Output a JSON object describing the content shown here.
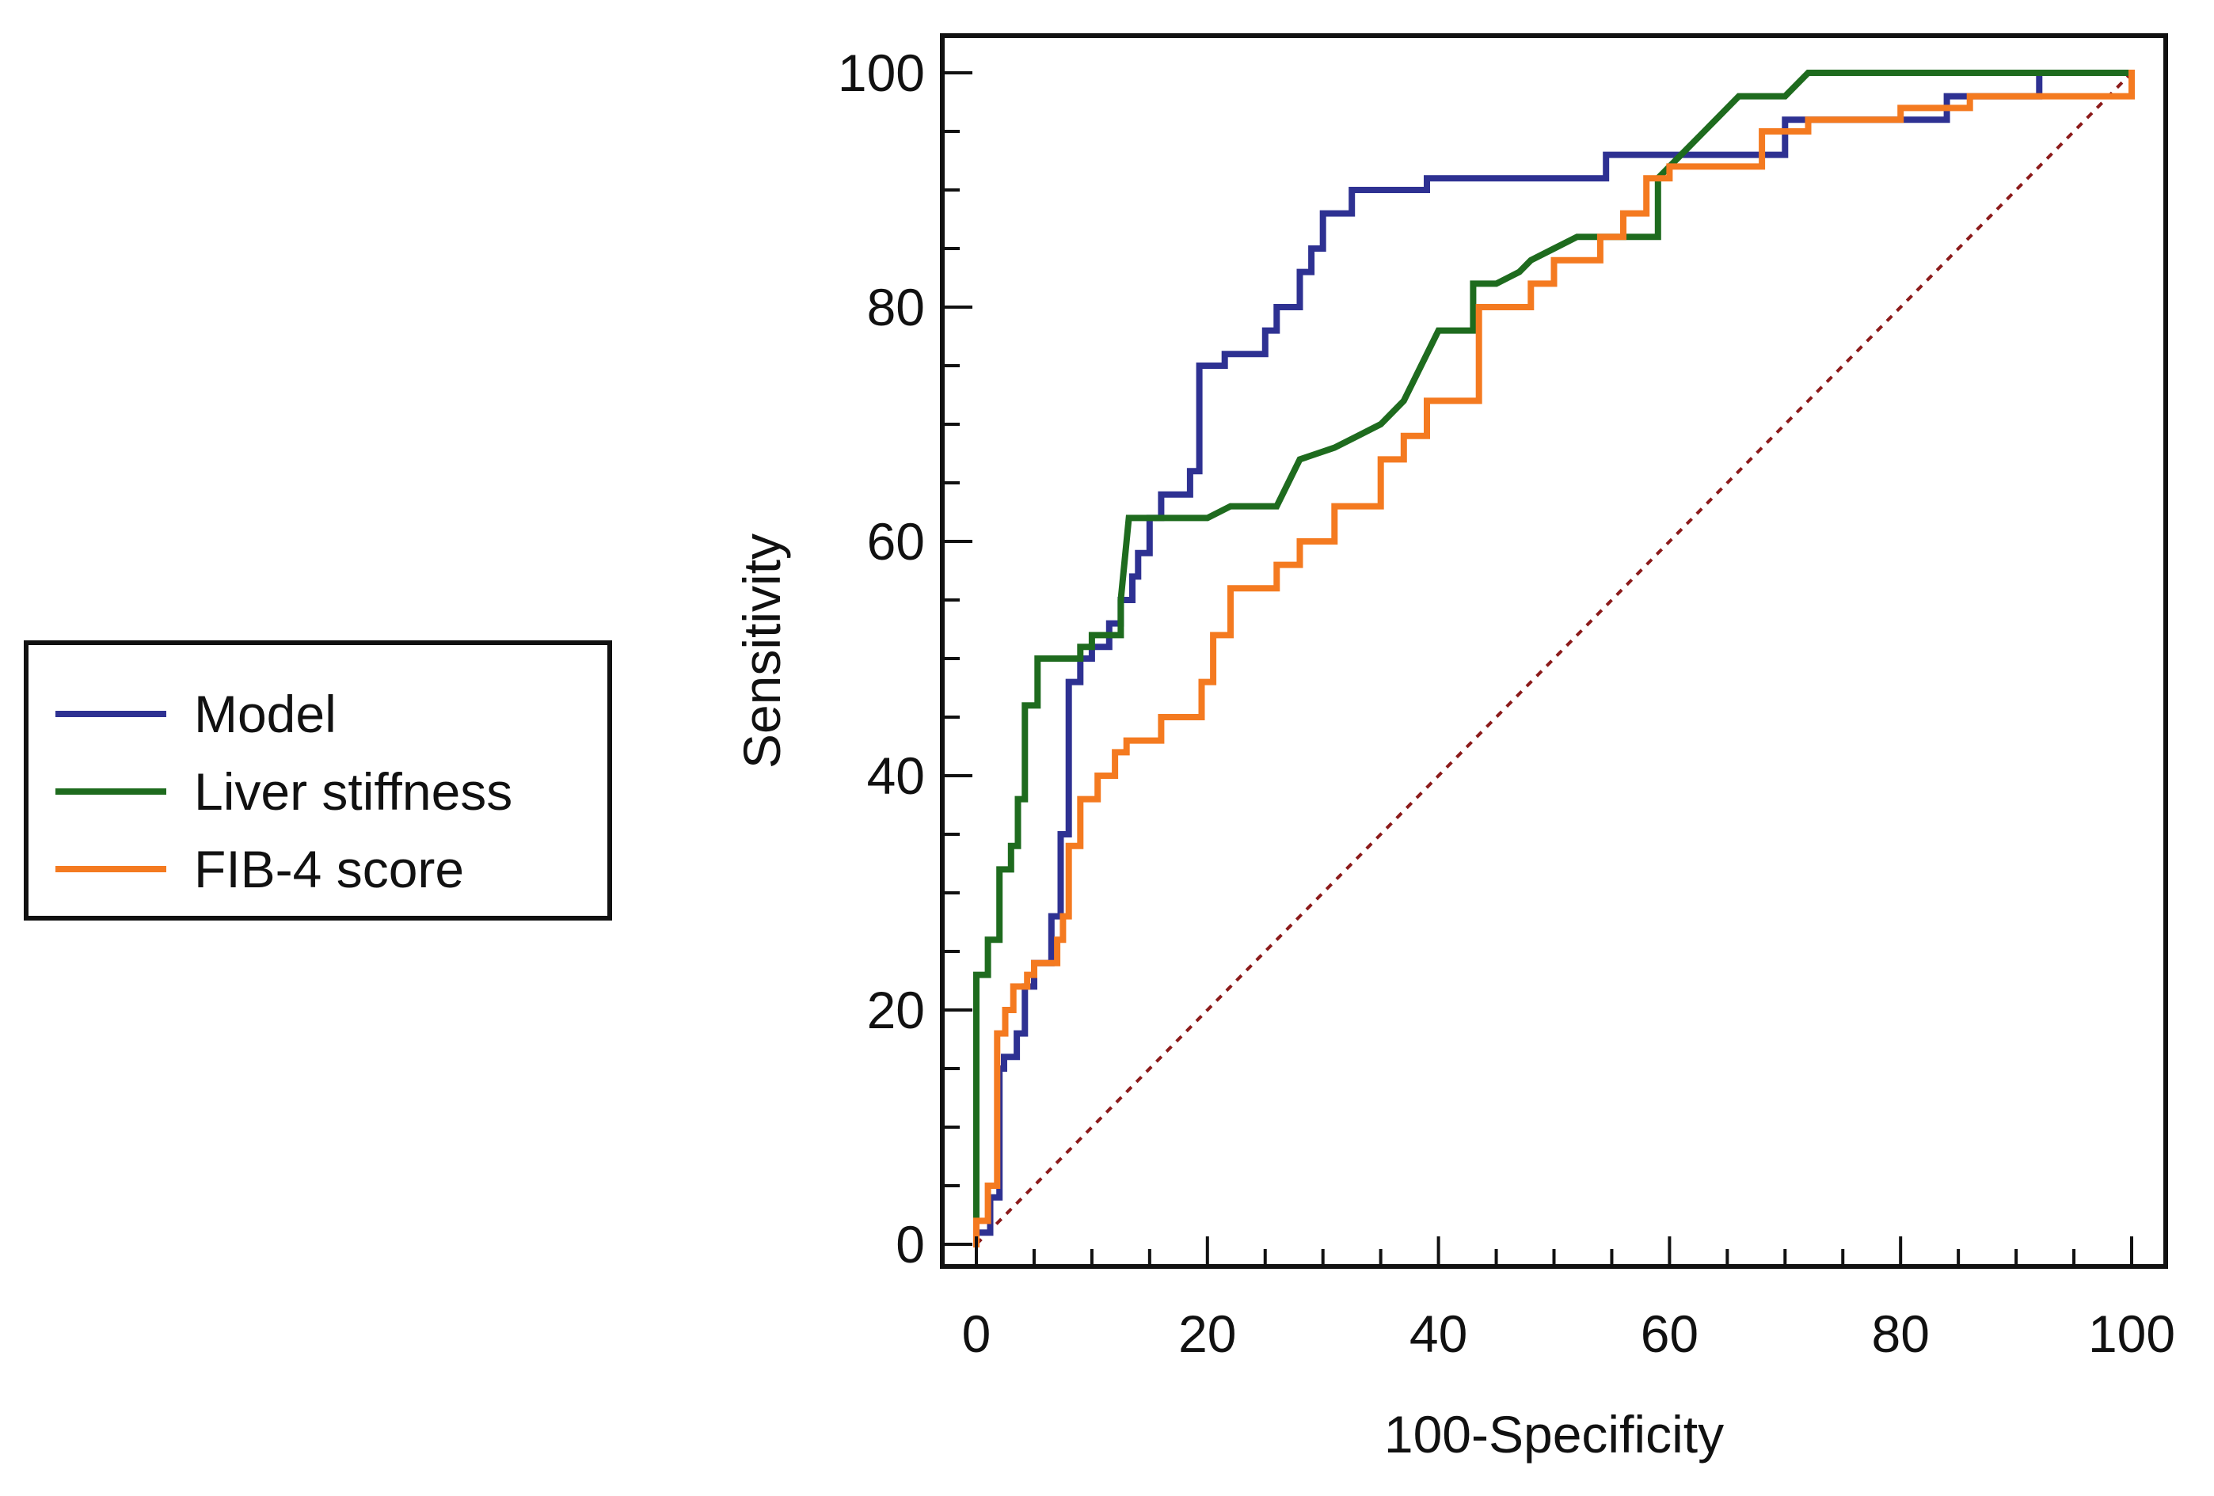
{
  "chart_data": {
    "type": "line",
    "title": "",
    "xlabel": "100-Specificity",
    "ylabel": "Sensitivity",
    "xlim": [
      0,
      100
    ],
    "ylim": [
      0,
      100
    ],
    "xticks": [
      "0",
      "20",
      "40",
      "60",
      "80",
      "100"
    ],
    "yticks": [
      "0",
      "20",
      "40",
      "60",
      "80",
      "100"
    ],
    "xtick_values": [
      0,
      20,
      40,
      60,
      80,
      100
    ],
    "ytick_values": [
      0,
      20,
      40,
      60,
      80,
      100
    ],
    "grid": false,
    "legend_position": "left",
    "reference_line": {
      "style": "dotted",
      "color": "#8b1a1a",
      "x": [
        0,
        100
      ],
      "y": [
        0,
        100
      ]
    },
    "series": [
      {
        "name": "Model",
        "color": "#2e3192",
        "x": [
          0,
          0,
          1.2,
          1.2,
          2,
          2,
          2.4,
          2.4,
          3.5,
          3.5,
          4.2,
          4.2,
          5,
          5,
          6.5,
          6.5,
          7.3,
          7.3,
          8,
          8,
          9,
          9,
          10,
          10,
          11.5,
          11.5,
          12.5,
          12.5,
          13.5,
          13.5,
          14,
          14,
          15,
          15,
          16,
          16,
          18.5,
          18.5,
          19.3,
          19.3,
          21.5,
          21.5,
          25,
          25,
          26,
          26,
          28,
          28,
          29,
          29,
          30,
          30,
          32.5,
          32.5,
          39,
          39,
          54.5,
          54.5,
          70,
          70,
          84,
          84,
          92,
          92,
          100
        ],
        "y": [
          0,
          1,
          1,
          4,
          4,
          15,
          15,
          16,
          16,
          18,
          18,
          22,
          22,
          24,
          24,
          28,
          28,
          35,
          35,
          48,
          48,
          50,
          50,
          51,
          51,
          53,
          53,
          55,
          55,
          57,
          57,
          59,
          59,
          62,
          62,
          64,
          64,
          66,
          66,
          75,
          75,
          76,
          76,
          78,
          78,
          80,
          80,
          83,
          83,
          85,
          85,
          88,
          88,
          90,
          90,
          91,
          91,
          93,
          93,
          96,
          96,
          98,
          98,
          100,
          100
        ]
      },
      {
        "name": "Liver stiffness",
        "color": "#1e6b1e",
        "x": [
          0,
          0,
          1,
          1,
          2,
          2,
          3,
          3,
          3.6,
          3.6,
          4.2,
          4.2,
          5.3,
          5.3,
          9,
          9,
          10,
          10,
          12.5,
          12.5,
          13.2,
          15,
          20,
          22,
          23,
          26,
          26.5,
          28,
          31,
          33,
          35,
          37,
          38,
          40,
          43,
          43,
          45,
          47,
          48,
          50,
          50,
          52,
          53,
          55,
          59,
          59,
          61,
          63,
          64,
          66,
          70,
          72,
          100
        ],
        "y": [
          0,
          23,
          23,
          26,
          26,
          32,
          32,
          34,
          34,
          38,
          38,
          46,
          46,
          50,
          50,
          51,
          51,
          52,
          52,
          55,
          62,
          62,
          62,
          63,
          63,
          63,
          64,
          67,
          68,
          69,
          70,
          72,
          74,
          78,
          78,
          82,
          82,
          83,
          84,
          85,
          85,
          86,
          86,
          86,
          86,
          91,
          93,
          95,
          96,
          98,
          98,
          100,
          100
        ]
      },
      {
        "name": "FIB-4 score",
        "color": "#f47a20",
        "x": [
          0,
          0,
          1,
          1,
          1.8,
          1.8,
          2.5,
          2.5,
          3.2,
          3.2,
          4.4,
          4.4,
          5,
          5,
          7,
          7,
          7.5,
          7.5,
          8,
          8,
          9,
          9,
          10.5,
          10.5,
          12,
          12,
          13,
          13,
          16,
          16,
          19.5,
          19.5,
          20.5,
          20.5,
          22,
          22,
          26,
          26,
          28,
          28,
          31,
          31,
          35,
          35,
          37,
          37,
          39,
          39,
          43.5,
          43.5,
          48,
          48,
          50,
          50,
          54,
          54,
          56,
          56,
          58,
          58,
          60,
          60,
          68,
          68,
          72,
          72,
          80,
          80,
          86,
          86,
          100,
          100
        ],
        "y": [
          0,
          2,
          2,
          5,
          5,
          18,
          18,
          20,
          20,
          22,
          22,
          23,
          23,
          24,
          24,
          26,
          26,
          28,
          28,
          34,
          34,
          38,
          38,
          40,
          40,
          42,
          42,
          43,
          43,
          45,
          45,
          48,
          48,
          52,
          52,
          56,
          56,
          58,
          58,
          60,
          60,
          63,
          63,
          67,
          67,
          69,
          69,
          72,
          72,
          80,
          80,
          82,
          82,
          84,
          84,
          86,
          86,
          88,
          88,
          91,
          91,
          92,
          92,
          95,
          95,
          96,
          96,
          97,
          97,
          98,
          98,
          100
        ]
      }
    ]
  }
}
